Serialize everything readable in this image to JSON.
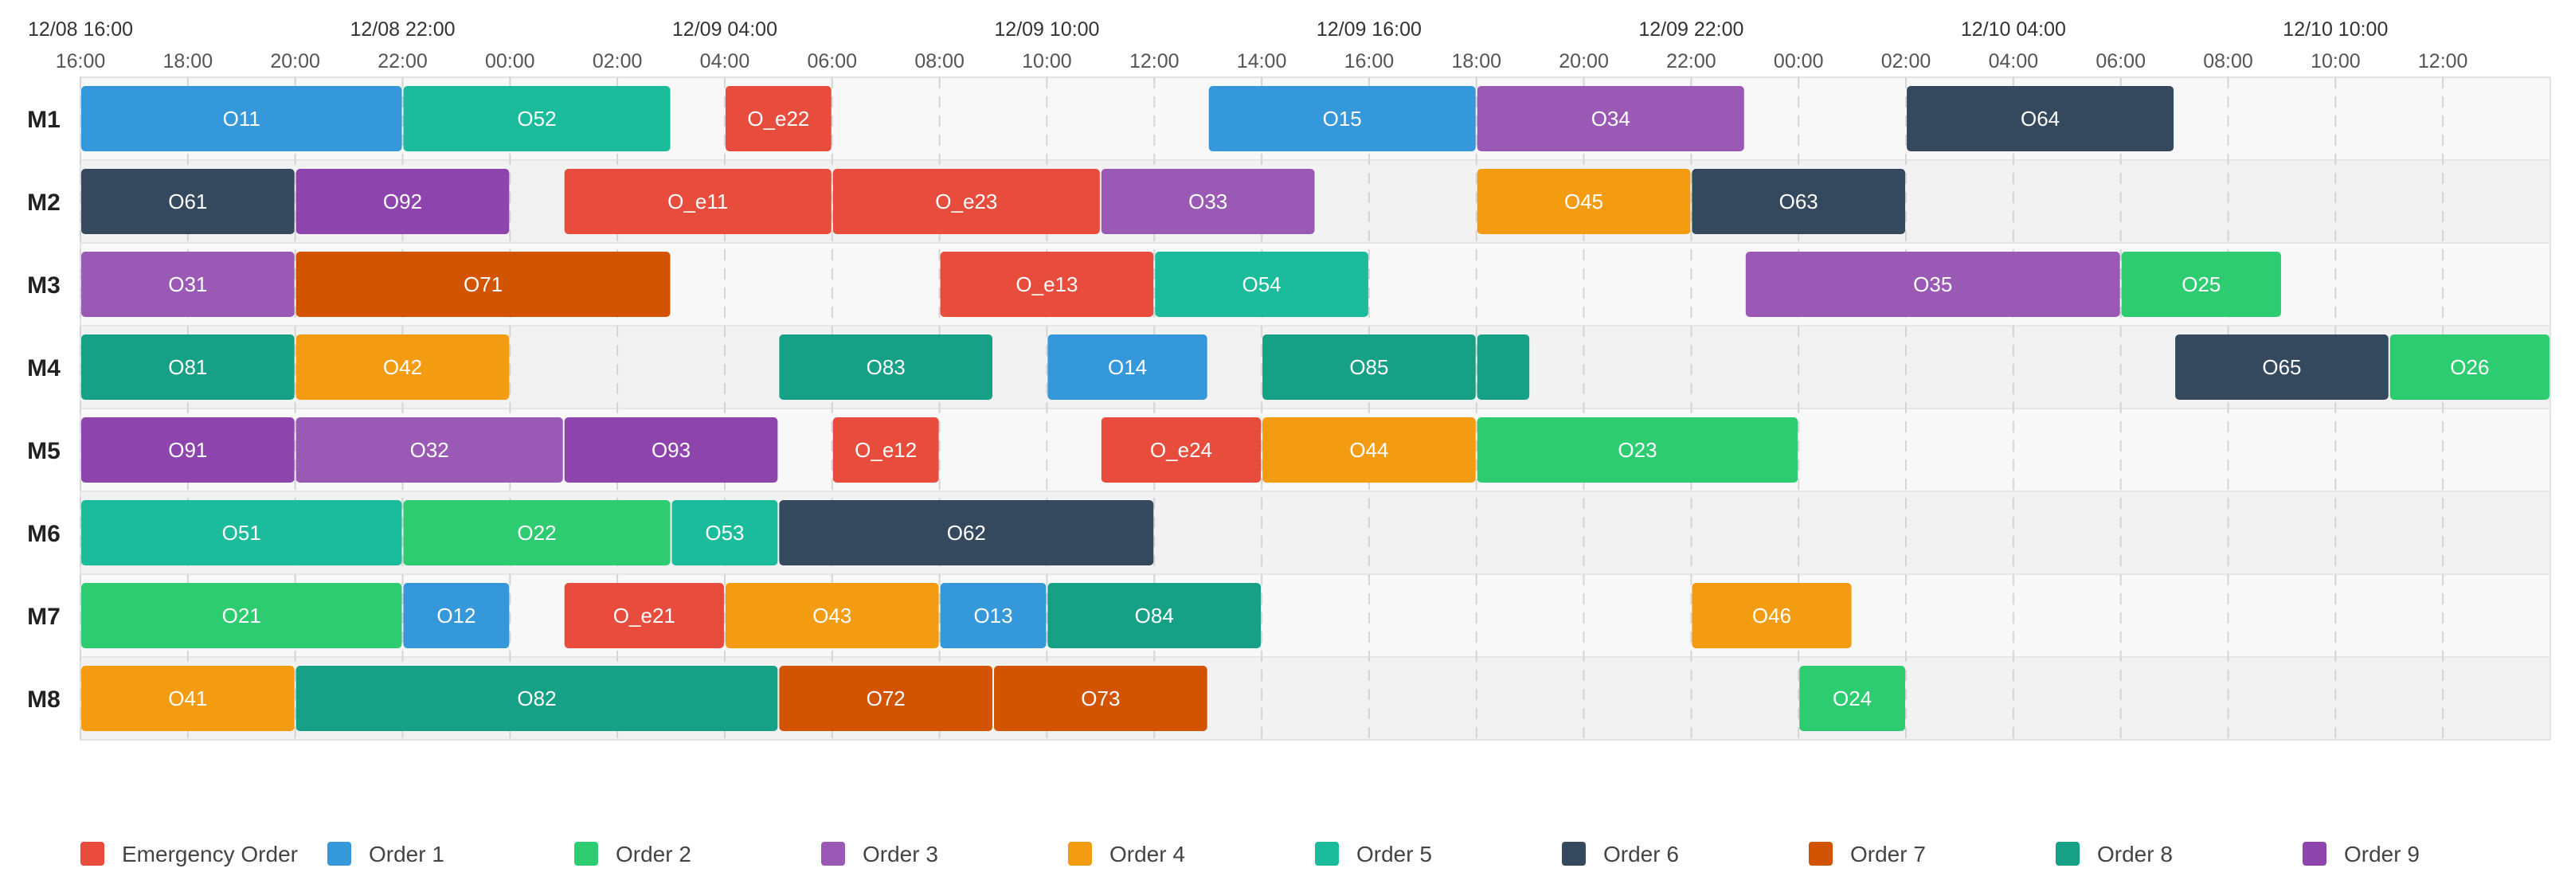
{
  "chart_data": {
    "type": "gantt",
    "time_start": "12/08 16:00",
    "time_end": "12/10 14:00",
    "day_labels": [
      "12/08 16:00",
      "12/08 22:00",
      "12/09 04:00",
      "12/09 10:00",
      "12/09 16:00",
      "12/09 22:00",
      "12/10 04:00",
      "12/10 10:00"
    ],
    "hour_labels": [
      "16:00",
      "18:00",
      "20:00",
      "22:00",
      "00:00",
      "02:00",
      "04:00",
      "06:00",
      "08:00",
      "10:00",
      "12:00",
      "14:00",
      "16:00",
      "18:00",
      "20:00",
      "22:00",
      "00:00",
      "02:00",
      "04:00",
      "06:00",
      "08:00",
      "10:00",
      "12:00"
    ],
    "machines": [
      "M1",
      "M2",
      "M3",
      "M4",
      "M5",
      "M6",
      "M7",
      "M8"
    ],
    "legend": [
      {
        "key": "E",
        "label": "Emergency Order",
        "color": "#e74c3c"
      },
      {
        "key": "1",
        "label": "Order 1",
        "color": "#3498db"
      },
      {
        "key": "2",
        "label": "Order 2",
        "color": "#2ecc71"
      },
      {
        "key": "3",
        "label": "Order 3",
        "color": "#9b59b6"
      },
      {
        "key": "4",
        "label": "Order 4",
        "color": "#f39c12"
      },
      {
        "key": "5",
        "label": "Order 5",
        "color": "#1abc9c"
      },
      {
        "key": "6",
        "label": "Order 6",
        "color": "#34495e"
      },
      {
        "key": "7",
        "label": "Order 7",
        "color": "#d35400"
      },
      {
        "key": "8",
        "label": "Order 8",
        "color": "#16a085"
      },
      {
        "key": "9",
        "label": "Order 9",
        "color": "#8e44ad"
      }
    ],
    "tasks": [
      {
        "machine": "M1",
        "label": "O11",
        "order": "1",
        "start": "12/08 16:00",
        "end": "12/08 22:00"
      },
      {
        "machine": "M1",
        "label": "O52",
        "order": "5",
        "start": "12/08 22:00",
        "end": "12/09 03:00"
      },
      {
        "machine": "M1",
        "label": "O_e22",
        "order": "E",
        "start": "12/09 04:00",
        "end": "12/09 06:00"
      },
      {
        "machine": "M1",
        "label": "O15",
        "order": "1",
        "start": "12/09 13:00",
        "end": "12/09 18:00"
      },
      {
        "machine": "M1",
        "label": "O34",
        "order": "3",
        "start": "12/09 18:00",
        "end": "12/09 23:00"
      },
      {
        "machine": "M1",
        "label": "O64",
        "order": "6",
        "start": "12/10 02:00",
        "end": "12/10 07:00"
      },
      {
        "machine": "M2",
        "label": "O61",
        "order": "6",
        "start": "12/08 16:00",
        "end": "12/08 20:00"
      },
      {
        "machine": "M2",
        "label": "O92",
        "order": "9",
        "start": "12/08 20:00",
        "end": "12/09 00:00"
      },
      {
        "machine": "M2",
        "label": "O_e11",
        "order": "E",
        "start": "12/09 01:00",
        "end": "12/09 06:00"
      },
      {
        "machine": "M2",
        "label": "O_e23",
        "order": "E",
        "start": "12/09 06:00",
        "end": "12/09 11:00"
      },
      {
        "machine": "M2",
        "label": "O33",
        "order": "3",
        "start": "12/09 11:00",
        "end": "12/09 15:00"
      },
      {
        "machine": "M2",
        "label": "O45",
        "order": "4",
        "start": "12/09 18:00",
        "end": "12/09 22:00"
      },
      {
        "machine": "M2",
        "label": "O63",
        "order": "6",
        "start": "12/09 22:00",
        "end": "12/10 02:00"
      },
      {
        "machine": "M3",
        "label": "O31",
        "order": "3",
        "start": "12/08 16:00",
        "end": "12/08 20:00"
      },
      {
        "machine": "M3",
        "label": "O71",
        "order": "7",
        "start": "12/08 20:00",
        "end": "12/09 03:00"
      },
      {
        "machine": "M3",
        "label": "O_e13",
        "order": "E",
        "start": "12/09 08:00",
        "end": "12/09 12:00"
      },
      {
        "machine": "M3",
        "label": "O54",
        "order": "5",
        "start": "12/09 12:00",
        "end": "12/09 16:00"
      },
      {
        "machine": "M3",
        "label": "O35",
        "order": "3",
        "start": "12/09 23:00",
        "end": "12/10 06:00"
      },
      {
        "machine": "M3",
        "label": "O25",
        "order": "2",
        "start": "12/10 06:00",
        "end": "12/10 09:00"
      },
      {
        "machine": "M4",
        "label": "O81",
        "order": "8",
        "start": "12/08 16:00",
        "end": "12/08 20:00"
      },
      {
        "machine": "M4",
        "label": "O42",
        "order": "4",
        "start": "12/08 20:00",
        "end": "12/09 00:00"
      },
      {
        "machine": "M4",
        "label": "O83",
        "order": "8",
        "start": "12/09 05:00",
        "end": "12/09 09:00"
      },
      {
        "machine": "M4",
        "label": "O14",
        "order": "1",
        "start": "12/09 10:00",
        "end": "12/09 13:00"
      },
      {
        "machine": "M4",
        "label": "O85",
        "order": "8",
        "start": "12/09 14:00",
        "end": "12/09 18:00"
      },
      {
        "machine": "M4",
        "label": "",
        "order": "8",
        "start": "12/09 18:00",
        "end": "12/09 19:00"
      },
      {
        "machine": "M4",
        "label": "O65",
        "order": "6",
        "start": "12/10 07:00",
        "end": "12/10 11:00"
      },
      {
        "machine": "M4",
        "label": "O26",
        "order": "2",
        "start": "12/10 11:00",
        "end": "12/10 14:00"
      },
      {
        "machine": "M5",
        "label": "O91",
        "order": "9",
        "start": "12/08 16:00",
        "end": "12/08 20:00"
      },
      {
        "machine": "M5",
        "label": "O32",
        "order": "3",
        "start": "12/08 20:00",
        "end": "12/09 01:00"
      },
      {
        "machine": "M5",
        "label": "O93",
        "order": "9",
        "start": "12/09 01:00",
        "end": "12/09 05:00"
      },
      {
        "machine": "M5",
        "label": "O_e12",
        "order": "E",
        "start": "12/09 06:00",
        "end": "12/09 08:00"
      },
      {
        "machine": "M5",
        "label": "O_e24",
        "order": "E",
        "start": "12/09 11:00",
        "end": "12/09 14:00"
      },
      {
        "machine": "M5",
        "label": "O44",
        "order": "4",
        "start": "12/09 14:00",
        "end": "12/09 18:00"
      },
      {
        "machine": "M5",
        "label": "O23",
        "order": "2",
        "start": "12/09 18:00",
        "end": "12/10 00:00"
      },
      {
        "machine": "M6",
        "label": "O51",
        "order": "5",
        "start": "12/08 16:00",
        "end": "12/08 22:00"
      },
      {
        "machine": "M6",
        "label": "O22",
        "order": "2",
        "start": "12/08 22:00",
        "end": "12/09 03:00"
      },
      {
        "machine": "M6",
        "label": "O53",
        "order": "5",
        "start": "12/09 03:00",
        "end": "12/09 05:00"
      },
      {
        "machine": "M6",
        "label": "O62",
        "order": "6",
        "start": "12/09 05:00",
        "end": "12/09 12:00"
      },
      {
        "machine": "M7",
        "label": "O21",
        "order": "2",
        "start": "12/08 16:00",
        "end": "12/08 22:00"
      },
      {
        "machine": "M7",
        "label": "O12",
        "order": "1",
        "start": "12/08 22:00",
        "end": "12/09 00:00"
      },
      {
        "machine": "M7",
        "label": "O_e21",
        "order": "E",
        "start": "12/09 01:00",
        "end": "12/09 04:00"
      },
      {
        "machine": "M7",
        "label": "O43",
        "order": "4",
        "start": "12/09 04:00",
        "end": "12/09 08:00"
      },
      {
        "machine": "M7",
        "label": "O13",
        "order": "1",
        "start": "12/09 08:00",
        "end": "12/09 10:00"
      },
      {
        "machine": "M7",
        "label": "O84",
        "order": "8",
        "start": "12/09 10:00",
        "end": "12/09 14:00"
      },
      {
        "machine": "M7",
        "label": "O46",
        "order": "4",
        "start": "12/09 22:00",
        "end": "12/10 01:00"
      },
      {
        "machine": "M8",
        "label": "O41",
        "order": "4",
        "start": "12/08 16:00",
        "end": "12/08 20:00"
      },
      {
        "machine": "M8",
        "label": "O82",
        "order": "8",
        "start": "12/08 20:00",
        "end": "12/09 05:00"
      },
      {
        "machine": "M8",
        "label": "O72",
        "order": "7",
        "start": "12/09 05:00",
        "end": "12/09 09:00"
      },
      {
        "machine": "M8",
        "label": "O73",
        "order": "7",
        "start": "12/09 09:00",
        "end": "12/09 13:00"
      },
      {
        "machine": "M8",
        "label": "O24",
        "order": "2",
        "start": "12/10 00:00",
        "end": "12/10 02:00"
      }
    ]
  }
}
